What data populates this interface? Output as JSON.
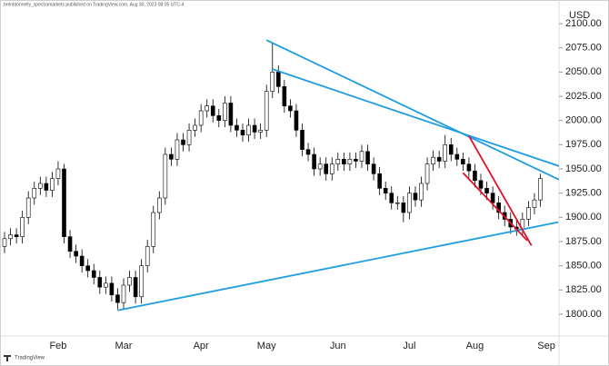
{
  "chart_data": {
    "type": "candlestick",
    "attribution": "brentdonnelly_spectramarkets published on TradingView.com, Aug 30, 2023 08:05 UTC-4",
    "currency": "USD",
    "watermark": "TradingView",
    "categories": [
      null,
      null,
      null,
      null,
      null,
      null,
      null,
      null,
      null,
      "Feb",
      null,
      null,
      null,
      null,
      null,
      null,
      null,
      null,
      null,
      null,
      "Mar",
      null,
      null,
      null,
      null,
      null,
      null,
      null,
      null,
      null,
      null,
      null,
      null,
      "Apr",
      null,
      null,
      null,
      null,
      null,
      null,
      null,
      null,
      null,
      null,
      "May",
      null,
      null,
      null,
      null,
      null,
      null,
      null,
      null,
      null,
      null,
      null,
      "Jun",
      null,
      null,
      null,
      null,
      null,
      null,
      null,
      null,
      null,
      null,
      null,
      "Jul",
      null,
      null,
      null,
      null,
      null,
      null,
      null,
      null,
      null,
      null,
      "Aug",
      null,
      null,
      null,
      null,
      null,
      null,
      null,
      null,
      null,
      null,
      null,
      "Sep"
    ],
    "open": [
      1870,
      1878,
      1882,
      1880,
      1900,
      1920,
      1930,
      1935,
      1928,
      1940,
      1950,
      1880,
      1865,
      1860,
      1850,
      1845,
      1838,
      1828,
      1832,
      1820,
      1812,
      1830,
      1838,
      1818,
      1850,
      1870,
      1905,
      1920,
      1965,
      1960,
      1980,
      1975,
      1990,
      1995,
      2010,
      2015,
      2005,
      2000,
      2018,
      1995,
      1990,
      1985,
      1995,
      1988,
      1990,
      2030,
      2050,
      2035,
      2015,
      2010,
      1990,
      1970,
      1965,
      1950,
      1955,
      1945,
      1955,
      1960,
      1955,
      1960,
      1958,
      1968,
      1955,
      1945,
      1930,
      1925,
      1915,
      1915,
      1905,
      1925,
      1918,
      1935,
      1955,
      1962,
      1958,
      1975,
      1965,
      1960,
      1955,
      1948,
      1938,
      1930,
      1925,
      1915,
      1905,
      1898,
      1890,
      1888,
      1898,
      1910,
      1918,
      null
    ],
    "high": [
      1885,
      1889,
      1889,
      1907,
      1927,
      1937,
      1942,
      1942,
      1947,
      1958,
      1955,
      1887,
      1872,
      1867,
      1857,
      1852,
      1845,
      1839,
      1839,
      1827,
      1837,
      1845,
      1845,
      1857,
      1877,
      1912,
      1927,
      1972,
      1972,
      1987,
      1987,
      1997,
      2002,
      2017,
      2022,
      2022,
      2012,
      2025,
      2025,
      2002,
      1997,
      2002,
      2002,
      1997,
      2037,
      2080,
      2057,
      2042,
      2022,
      2017,
      1997,
      1977,
      1972,
      1962,
      1962,
      1962,
      1967,
      1967,
      1967,
      1967,
      1975,
      1975,
      1962,
      1952,
      1937,
      1932,
      1922,
      1922,
      1932,
      1932,
      1942,
      1962,
      1969,
      1969,
      1985,
      1982,
      1972,
      1967,
      1962,
      1955,
      1945,
      1937,
      1932,
      1922,
      1912,
      1905,
      1897,
      1905,
      1917,
      1925,
      1945,
      null
    ],
    "low": [
      1863,
      1871,
      1873,
      1873,
      1893,
      1913,
      1923,
      1921,
      1921,
      1933,
      1873,
      1858,
      1853,
      1843,
      1838,
      1831,
      1821,
      1821,
      1813,
      1805,
      1805,
      1823,
      1811,
      1811,
      1843,
      1863,
      1898,
      1913,
      1953,
      1953,
      1968,
      1968,
      1983,
      1988,
      2003,
      1998,
      1993,
      1993,
      1988,
      1983,
      1978,
      1978,
      1981,
      1981,
      1983,
      2023,
      2028,
      2008,
      2003,
      1983,
      1963,
      1958,
      1943,
      1943,
      1938,
      1938,
      1948,
      1948,
      1948,
      1951,
      1951,
      1948,
      1938,
      1923,
      1918,
      1908,
      1908,
      1895,
      1898,
      1911,
      1911,
      1928,
      1948,
      1951,
      1951,
      1958,
      1953,
      1948,
      1941,
      1931,
      1923,
      1918,
      1908,
      1898,
      1891,
      1883,
      1881,
      1881,
      1891,
      1903,
      1911,
      null
    ],
    "close": [
      1878,
      1882,
      1880,
      1900,
      1920,
      1930,
      1935,
      1928,
      1940,
      1950,
      1880,
      1865,
      1860,
      1850,
      1845,
      1838,
      1828,
      1832,
      1820,
      1812,
      1830,
      1838,
      1818,
      1850,
      1870,
      1905,
      1920,
      1965,
      1960,
      1980,
      1975,
      1990,
      1995,
      2010,
      2015,
      2005,
      2000,
      2018,
      1995,
      1990,
      1985,
      1995,
      1988,
      1990,
      2030,
      2050,
      2035,
      2015,
      2010,
      1990,
      1970,
      1965,
      1950,
      1955,
      1945,
      1955,
      1960,
      1955,
      1960,
      1958,
      1968,
      1955,
      1945,
      1930,
      1925,
      1915,
      1915,
      1905,
      1925,
      1918,
      1935,
      1955,
      1962,
      1958,
      1975,
      1965,
      1960,
      1955,
      1948,
      1938,
      1930,
      1925,
      1915,
      1905,
      1898,
      1890,
      1888,
      1898,
      1910,
      1918,
      1940,
      null
    ],
    "up_color": "#ffffff",
    "down_color": "#000000",
    "outline_color": "#000000",
    "trendlines": [
      {
        "color": "#1e9de0",
        "points": [
          [
            19,
            1804
          ],
          [
            93,
            1895
          ]
        ]
      },
      {
        "color": "#1e9de0",
        "points": [
          [
            44,
            2083
          ],
          [
            95.5,
            1932
          ]
        ]
      },
      {
        "color": "#1e9de0",
        "points": [
          [
            45,
            2053
          ],
          [
            95.5,
            1948
          ]
        ]
      },
      {
        "color": "#e0102a",
        "points": [
          [
            78,
            1984
          ],
          [
            88.5,
            1871
          ]
        ]
      },
      {
        "color": "#e0102a",
        "points": [
          [
            77,
            1946
          ],
          [
            87.8,
            1876
          ]
        ]
      }
    ],
    "ylim": [
      1777.5,
      2115
    ],
    "yticks": [
      {
        "value": 1800,
        "label": "1800.00"
      },
      {
        "value": 1825,
        "label": "1825.00"
      },
      {
        "value": 1850,
        "label": "1850.00"
      },
      {
        "value": 1875,
        "label": "1875.00"
      },
      {
        "value": 1900,
        "label": "1900.00"
      },
      {
        "value": 1925,
        "label": "1925.00"
      },
      {
        "value": 1950,
        "label": "1950.00"
      },
      {
        "value": 1975,
        "label": "1975.00"
      },
      {
        "value": 2000,
        "label": "2000.00"
      },
      {
        "value": 2025,
        "label": "2025.00"
      },
      {
        "value": 2050,
        "label": "2050.00"
      },
      {
        "value": 2075,
        "label": "2075.00"
      },
      {
        "value": 2100,
        "label": "2100.00"
      }
    ],
    "grid": false
  }
}
